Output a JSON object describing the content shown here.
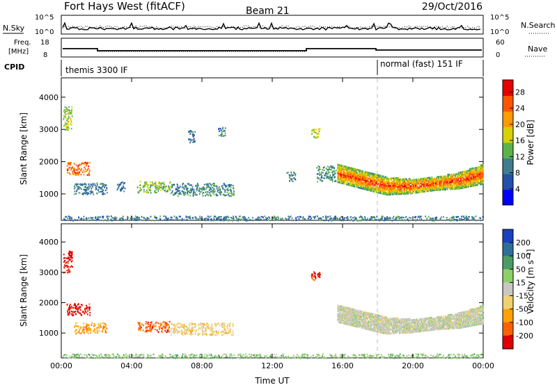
{
  "header": {
    "station": "Fort Hays West (fitACF)",
    "beam": "Beam 21",
    "date": "29/Oct/2016"
  },
  "top_panels": {
    "nsky_label": "N.Sky",
    "nsearch_label": "N.Search",
    "noise_ticks": [
      "10^5",
      "10^0"
    ],
    "freq_label_1": "Freq.",
    "freq_label_2": "[MHz]",
    "freq_ticks": [
      "18",
      "8"
    ],
    "nave_label": "Nave",
    "nave_ticks": [
      "60",
      "0"
    ],
    "cpid_label": "CPID",
    "cpid_segments": [
      {
        "label": "themis 3300 IF",
        "start_hour": 0
      },
      {
        "label": "normal (fast) 151 IF",
        "start_hour": 18
      }
    ]
  },
  "chart_data": [
    {
      "type": "heatmap",
      "name": "power",
      "xlabel": "",
      "ylabel": "Slant Range [km]",
      "x_ticks": [
        "00:00",
        "04:00",
        "08:00",
        "12:00",
        "16:00",
        "20:00",
        "00:00"
      ],
      "xlim_hours": [
        0,
        24
      ],
      "y_ticks": [
        "1000",
        "2000",
        "3000",
        "4000"
      ],
      "ylim_km": [
        180,
        4600
      ],
      "colorbar_label": "Power [dB]",
      "colorbar_ticks": [
        "4",
        "8",
        "12",
        "16",
        "20",
        "24",
        "28"
      ],
      "colorbar_range": [
        0,
        31
      ],
      "colorscale": [
        "#0000ff",
        "#2451a8",
        "#3f7d8e",
        "#5cb34a",
        "#d8d000",
        "#ff9a00",
        "#ff5500",
        "#e60000"
      ],
      "scatter_regions": [
        {
          "t0": 0.1,
          "t1": 0.6,
          "r0": 3000,
          "r1": 3750,
          "v": 16
        },
        {
          "t0": 0.3,
          "t1": 1.6,
          "r0": 1600,
          "r1": 2000,
          "v": 24
        },
        {
          "t0": 0.7,
          "t1": 2.6,
          "r0": 1000,
          "r1": 1350,
          "v": 9
        },
        {
          "t0": 3.1,
          "t1": 3.6,
          "r0": 1100,
          "r1": 1400,
          "v": 8
        },
        {
          "t0": 4.3,
          "t1": 6.2,
          "r0": 1050,
          "r1": 1400,
          "v": 14
        },
        {
          "t0": 6.2,
          "t1": 9.8,
          "r0": 950,
          "r1": 1350,
          "v": 10
        },
        {
          "t0": 7.2,
          "t1": 7.6,
          "r0": 2600,
          "r1": 3000,
          "v": 9
        },
        {
          "t0": 8.9,
          "t1": 9.3,
          "r0": 2800,
          "r1": 3100,
          "v": 10
        },
        {
          "t0": 12.8,
          "t1": 13.3,
          "r0": 1400,
          "r1": 1700,
          "v": 10
        },
        {
          "t0": 14.2,
          "t1": 14.7,
          "r0": 2750,
          "r1": 3050,
          "v": 16
        },
        {
          "t0": 14.5,
          "t1": 15.6,
          "r0": 1400,
          "r1": 1900,
          "v": 11
        },
        {
          "t0": 0.0,
          "t1": 24.0,
          "r0": 190,
          "r1": 330,
          "v": 9
        }
      ],
      "band": {
        "t0": 15.7,
        "t1": 24.0,
        "lower_km": [
          1350,
          1150,
          960,
          1000,
          1100,
          1150,
          1300
        ],
        "upper_km": [
          1900,
          1700,
          1500,
          1450,
          1500,
          1650,
          1900
        ],
        "v": 19
      }
    },
    {
      "type": "heatmap",
      "name": "velocity",
      "xlabel": "Time UT",
      "ylabel": "Slant Range [km]",
      "x_ticks": [
        "00:00",
        "04:00",
        "08:00",
        "12:00",
        "16:00",
        "20:00",
        "00:00"
      ],
      "xlim_hours": [
        0,
        24
      ],
      "y_ticks": [
        "1000",
        "2000",
        "3000",
        "4000"
      ],
      "ylim_km": [
        180,
        4600
      ],
      "colorbar_label": "Velocity [m s⁻¹]",
      "colorbar_ticks": [
        "200",
        "100",
        "50",
        "15",
        "-15",
        "-50",
        "-100",
        "-200"
      ],
      "colorscale": [
        "#1a40c0",
        "#2e6f9a",
        "#4a9c66",
        "#8dd06a",
        "#c8c8c0",
        "#f0d070",
        "#ffa000",
        "#ff6000",
        "#e00000"
      ],
      "scatter_regions": [
        {
          "t0": 0.1,
          "t1": 0.6,
          "r0": 3000,
          "r1": 3750,
          "v": 8
        },
        {
          "t0": 0.3,
          "t1": 1.6,
          "r0": 1600,
          "r1": 2000,
          "v": 8
        },
        {
          "t0": 0.7,
          "t1": 2.6,
          "r0": 1000,
          "r1": 1350,
          "v": 6
        },
        {
          "t0": 4.3,
          "t1": 6.2,
          "r0": 1050,
          "r1": 1400,
          "v": 7
        },
        {
          "t0": 6.2,
          "t1": 9.8,
          "r0": 950,
          "r1": 1350,
          "v": 5
        },
        {
          "t0": 14.2,
          "t1": 14.7,
          "r0": 2750,
          "r1": 3050,
          "v": 8
        },
        {
          "t0": 0.0,
          "t1": 24.0,
          "r0": 190,
          "r1": 330,
          "v": 3
        }
      ],
      "band": {
        "t0": 15.7,
        "t1": 24.0,
        "lower_km": [
          1350,
          1150,
          960,
          1000,
          1100,
          1150,
          1300
        ],
        "upper_km": [
          1900,
          1700,
          1500,
          1450,
          1500,
          1650,
          1900
        ],
        "v": 4
      }
    }
  ]
}
